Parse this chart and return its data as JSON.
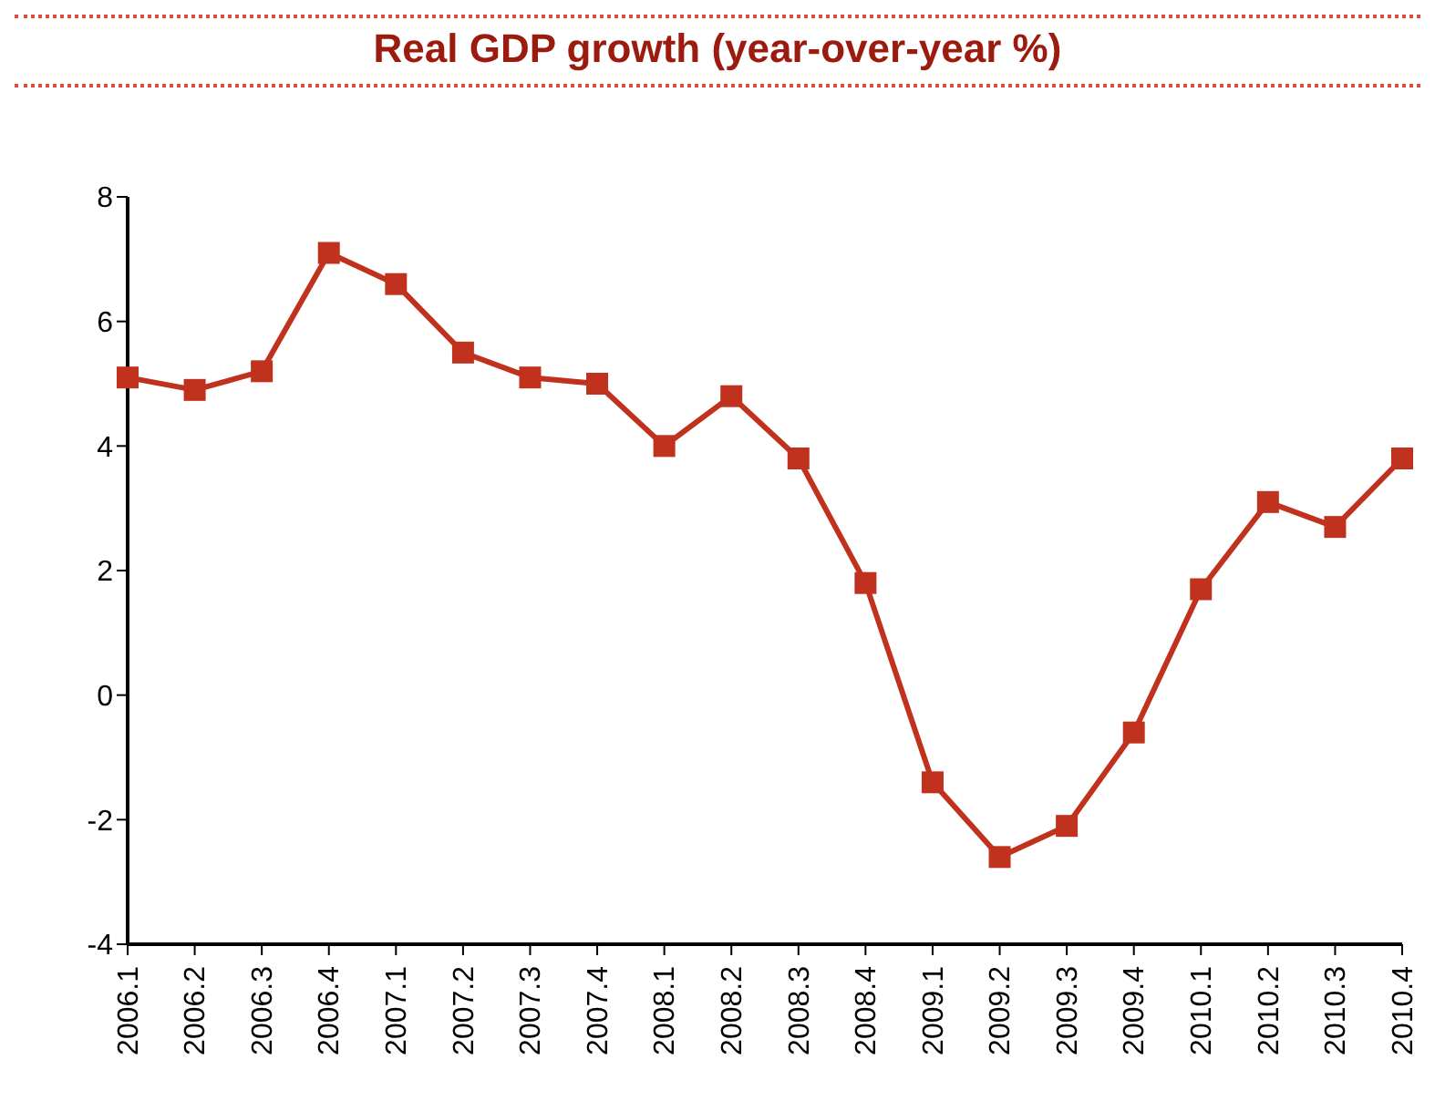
{
  "chart_data": {
    "type": "line",
    "title": "Real GDP growth (year-over-year %)",
    "categories": [
      "2006.1",
      "2006.2",
      "2006.3",
      "2006.4",
      "2007.1",
      "2007.2",
      "2007.3",
      "2007.4",
      "2008.1",
      "2008.2",
      "2008.3",
      "2008.4",
      "2009.1",
      "2009.2",
      "2009.3",
      "2009.4",
      "2010.1",
      "2010.2",
      "2010.3",
      "2010.4"
    ],
    "series": [
      {
        "color": "#c0321e",
        "values": [
          5.1,
          4.9,
          5.2,
          7.1,
          6.6,
          5.5,
          5.1,
          5.0,
          4.0,
          4.8,
          3.8,
          1.8,
          -1.4,
          -2.6,
          -2.1,
          -0.6,
          1.7,
          3.1,
          2.7,
          3.8
        ]
      }
    ],
    "ylim": [
      -4,
      8
    ],
    "yticks": [
      -4,
      -2,
      0,
      2,
      4,
      6,
      8
    ],
    "grid": false,
    "legend": false,
    "marker": "square",
    "line_style": "solid"
  }
}
